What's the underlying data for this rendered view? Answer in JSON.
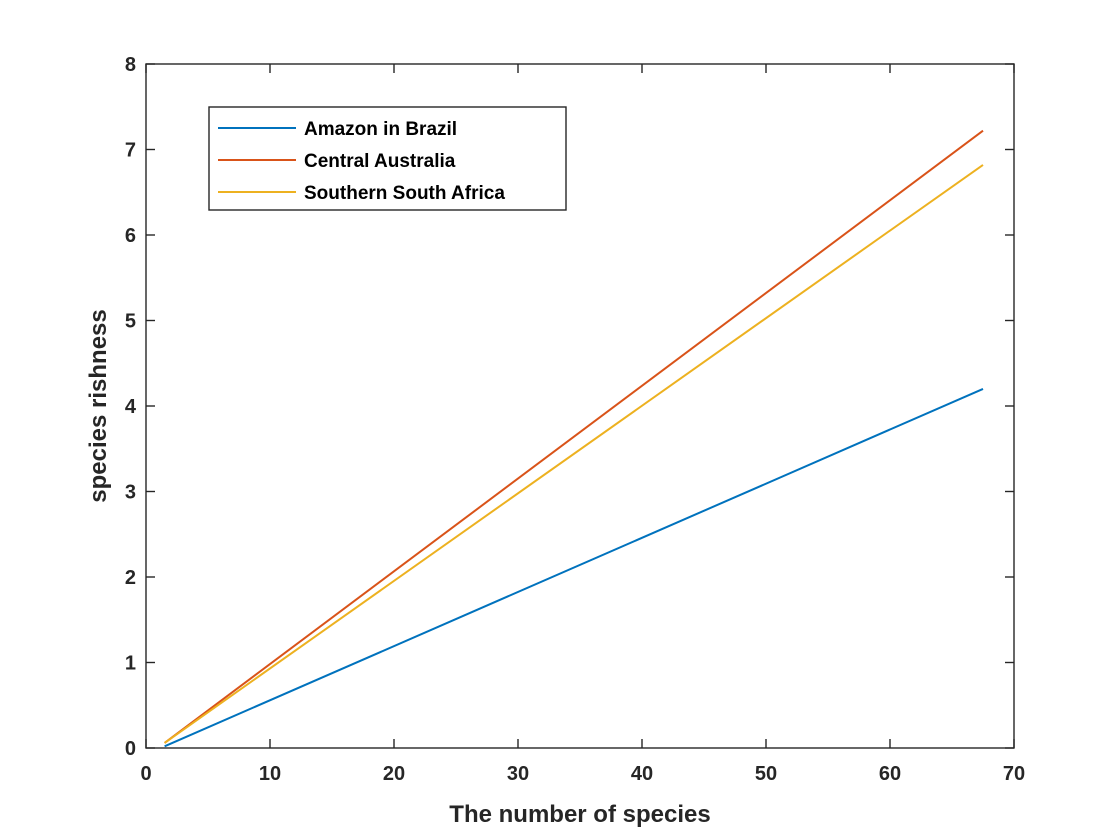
{
  "chart_data": {
    "type": "line",
    "title": "",
    "xlabel": "The number of  species",
    "ylabel": "species rishness",
    "xlim": [
      0,
      70
    ],
    "ylim": [
      0,
      8
    ],
    "xticks": [
      "0",
      "10",
      "20",
      "30",
      "40",
      "50",
      "60",
      "70"
    ],
    "yticks": [
      "0",
      "1",
      "2",
      "3",
      "4",
      "5",
      "6",
      "7",
      "8"
    ],
    "grid": false,
    "legend_position": "top-left",
    "series": [
      {
        "name": "Amazon in Brazil",
        "color": "#0072BD",
        "x": [
          1.5,
          67.5
        ],
        "y": [
          0.02,
          4.2
        ]
      },
      {
        "name": "Central Australia",
        "color": "#D95319",
        "x": [
          1.5,
          67.5
        ],
        "y": [
          0.06,
          7.22
        ]
      },
      {
        "name": "Southern South Africa",
        "color": "#EDB120",
        "x": [
          1.5,
          67.5
        ],
        "y": [
          0.06,
          6.82
        ]
      }
    ]
  }
}
